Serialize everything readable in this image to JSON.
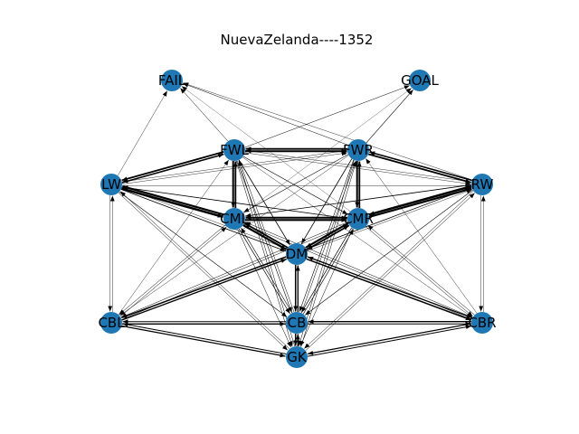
{
  "title": "NuevaZelanda----1352",
  "colors": {
    "node_fill": "#1f77b4",
    "edge": "#000000",
    "label": "#000000",
    "background": "#ffffff"
  },
  "nodes": [
    {
      "id": "FAIL",
      "label": "FAIL"
    },
    {
      "id": "GOAL",
      "label": "GOAL"
    },
    {
      "id": "FWL",
      "label": "FWL"
    },
    {
      "id": "FWR",
      "label": "FWR"
    },
    {
      "id": "LW",
      "label": "LW"
    },
    {
      "id": "RW",
      "label": "RW"
    },
    {
      "id": "CML",
      "label": "CML"
    },
    {
      "id": "CMR",
      "label": "CMR"
    },
    {
      "id": "DM",
      "label": "DM"
    },
    {
      "id": "CBL",
      "label": "CBL"
    },
    {
      "id": "CB",
      "label": "CB"
    },
    {
      "id": "CBR",
      "label": "CBR"
    },
    {
      "id": "GK",
      "label": "GK"
    }
  ],
  "edges": [
    {
      "from": "FWL",
      "to": "FWR",
      "weight": 2.0
    },
    {
      "from": "FWR",
      "to": "FWL",
      "weight": 1.8
    },
    {
      "from": "FWL",
      "to": "LW",
      "weight": 1.8
    },
    {
      "from": "LW",
      "to": "FWL",
      "weight": 1.5
    },
    {
      "from": "FWR",
      "to": "RW",
      "weight": 1.8
    },
    {
      "from": "RW",
      "to": "FWR",
      "weight": 1.5
    },
    {
      "from": "FWL",
      "to": "CML",
      "weight": 2.0
    },
    {
      "from": "CML",
      "to": "FWL",
      "weight": 1.8
    },
    {
      "from": "FWR",
      "to": "CMR",
      "weight": 2.0
    },
    {
      "from": "CMR",
      "to": "FWR",
      "weight": 1.8
    },
    {
      "from": "LW",
      "to": "CML",
      "weight": 2.5
    },
    {
      "from": "CML",
      "to": "LW",
      "weight": 2.2
    },
    {
      "from": "RW",
      "to": "CMR",
      "weight": 2.5
    },
    {
      "from": "CMR",
      "to": "RW",
      "weight": 2.2
    },
    {
      "from": "CML",
      "to": "CMR",
      "weight": 2.2
    },
    {
      "from": "CMR",
      "to": "CML",
      "weight": 2.0
    },
    {
      "from": "CML",
      "to": "DM",
      "weight": 2.2
    },
    {
      "from": "DM",
      "to": "CML",
      "weight": 1.8
    },
    {
      "from": "CMR",
      "to": "DM",
      "weight": 2.2
    },
    {
      "from": "DM",
      "to": "CMR",
      "weight": 1.8
    },
    {
      "from": "DM",
      "to": "CBL",
      "weight": 1.5
    },
    {
      "from": "CBL",
      "to": "DM",
      "weight": 1.3
    },
    {
      "from": "DM",
      "to": "CBR",
      "weight": 1.5
    },
    {
      "from": "CBR",
      "to": "DM",
      "weight": 1.3
    },
    {
      "from": "DM",
      "to": "CB",
      "weight": 1.5
    },
    {
      "from": "CB",
      "to": "DM",
      "weight": 1.3
    },
    {
      "from": "CBL",
      "to": "CB",
      "weight": 1.3
    },
    {
      "from": "CBR",
      "to": "CB",
      "weight": 1.3
    },
    {
      "from": "CBL",
      "to": "GK",
      "weight": 1.2
    },
    {
      "from": "GK",
      "to": "CBL",
      "weight": 1.0
    },
    {
      "from": "CBR",
      "to": "GK",
      "weight": 1.2
    },
    {
      "from": "CB",
      "to": "GK",
      "weight": 1.5
    },
    {
      "from": "GK",
      "to": "CB",
      "weight": 1.5
    },
    {
      "from": "LW",
      "to": "CMR",
      "weight": 0.8
    },
    {
      "from": "RW",
      "to": "CML",
      "weight": 0.8
    },
    {
      "from": "LW",
      "to": "DM",
      "weight": 0.8
    },
    {
      "from": "RW",
      "to": "DM",
      "weight": 0.8
    },
    {
      "from": "LW",
      "to": "CBL",
      "weight": 0.4
    },
    {
      "from": "RW",
      "to": "CBR",
      "weight": 0.4
    },
    {
      "from": "LW",
      "to": "CB",
      "weight": 0.6
    },
    {
      "from": "RW",
      "to": "CB",
      "weight": 0.6
    },
    {
      "from": "LW",
      "to": "GK",
      "weight": 0.5
    },
    {
      "from": "RW",
      "to": "GK",
      "weight": 0.5
    },
    {
      "from": "LW",
      "to": "RW",
      "weight": 0.4
    },
    {
      "from": "LW",
      "to": "FWR",
      "weight": 0.4
    },
    {
      "from": "RW",
      "to": "FWL",
      "weight": 0.4
    },
    {
      "from": "FWL",
      "to": "DM",
      "weight": 0.8
    },
    {
      "from": "FWR",
      "to": "DM",
      "weight": 0.8
    },
    {
      "from": "FWL",
      "to": "CMR",
      "weight": 0.6
    },
    {
      "from": "FWR",
      "to": "CML",
      "weight": 0.6
    },
    {
      "from": "FWL",
      "to": "CB",
      "weight": 0.6
    },
    {
      "from": "FWR",
      "to": "CB",
      "weight": 0.6
    },
    {
      "from": "FWL",
      "to": "GK",
      "weight": 0.5
    },
    {
      "from": "FWR",
      "to": "GK",
      "weight": 0.5
    },
    {
      "from": "FWL",
      "to": "CBR",
      "weight": 0.4
    },
    {
      "from": "FWR",
      "to": "CBL",
      "weight": 0.4
    },
    {
      "from": "FWL",
      "to": "RW",
      "weight": 0.4
    },
    {
      "from": "FWR",
      "to": "LW",
      "weight": 0.4
    },
    {
      "from": "FWL",
      "to": "GOAL",
      "weight": 0.5
    },
    {
      "from": "FWR",
      "to": "GOAL",
      "weight": 0.6
    },
    {
      "from": "FWL",
      "to": "FAIL",
      "weight": 0.5
    },
    {
      "from": "FWR",
      "to": "FAIL",
      "weight": 0.5
    },
    {
      "from": "LW",
      "to": "FAIL",
      "weight": 0.4
    },
    {
      "from": "RW",
      "to": "FAIL",
      "weight": 0.4
    },
    {
      "from": "CML",
      "to": "GOAL",
      "weight": 0.3
    },
    {
      "from": "CMR",
      "to": "FAIL",
      "weight": 0.3
    },
    {
      "from": "CML",
      "to": "CB",
      "weight": 0.7
    },
    {
      "from": "CMR",
      "to": "CB",
      "weight": 0.7
    },
    {
      "from": "CML",
      "to": "GK",
      "weight": 0.5
    },
    {
      "from": "CMR",
      "to": "GK",
      "weight": 0.5
    },
    {
      "from": "CML",
      "to": "CBL",
      "weight": 0.5
    },
    {
      "from": "CMR",
      "to": "CBR",
      "weight": 0.5
    },
    {
      "from": "CML",
      "to": "CBR",
      "weight": 0.5
    },
    {
      "from": "CMR",
      "to": "CBL",
      "weight": 0.5
    },
    {
      "from": "CBL",
      "to": "CML",
      "weight": 0.5
    },
    {
      "from": "CBR",
      "to": "CMR",
      "weight": 0.5
    },
    {
      "from": "CBL",
      "to": "CMR",
      "weight": 0.5
    },
    {
      "from": "CBR",
      "to": "CML",
      "weight": 0.5
    },
    {
      "from": "CB",
      "to": "CML",
      "weight": 0.6
    },
    {
      "from": "CB",
      "to": "CMR",
      "weight": 0.6
    },
    {
      "from": "CBL",
      "to": "LW",
      "weight": 0.4
    },
    {
      "from": "CBR",
      "to": "RW",
      "weight": 0.4
    },
    {
      "from": "CBL",
      "to": "FWL",
      "weight": 0.4
    },
    {
      "from": "CBR",
      "to": "FWR",
      "weight": 0.4
    },
    {
      "from": "CB",
      "to": "FWL",
      "weight": 0.5
    },
    {
      "from": "CB",
      "to": "FWR",
      "weight": 0.5
    },
    {
      "from": "GK",
      "to": "FWL",
      "weight": 0.5
    },
    {
      "from": "GK",
      "to": "FWR",
      "weight": 0.5
    },
    {
      "from": "GK",
      "to": "LW",
      "weight": 0.5
    },
    {
      "from": "GK",
      "to": "RW",
      "weight": 0.5
    },
    {
      "from": "GK",
      "to": "CBR",
      "weight": 1.0
    },
    {
      "from": "CB",
      "to": "CBL",
      "weight": 1.0
    },
    {
      "from": "CB",
      "to": "CBR",
      "weight": 1.0
    },
    {
      "from": "CBL",
      "to": "RW",
      "weight": 0.4
    },
    {
      "from": "CBR",
      "to": "LW",
      "weight": 0.4
    }
  ]
}
